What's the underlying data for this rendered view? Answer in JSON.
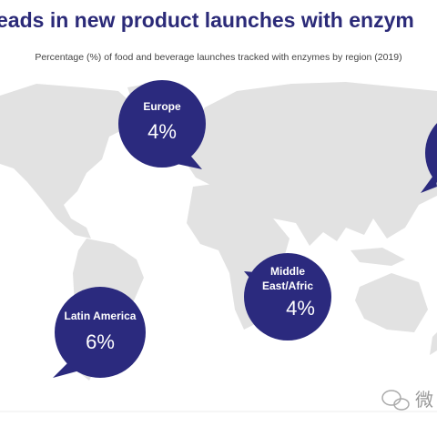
{
  "title": "eads in new product launches with enzym",
  "subtitle": "Percentage (%) of food and beverage launches tracked with enzymes by region (2019)",
  "regions": [
    {
      "name": "Europe",
      "value": "4%"
    },
    {
      "name": "Middle East/Africa",
      "value": "4%"
    },
    {
      "name": "Latin America",
      "value": "6%"
    }
  ],
  "watermark": "微"
}
